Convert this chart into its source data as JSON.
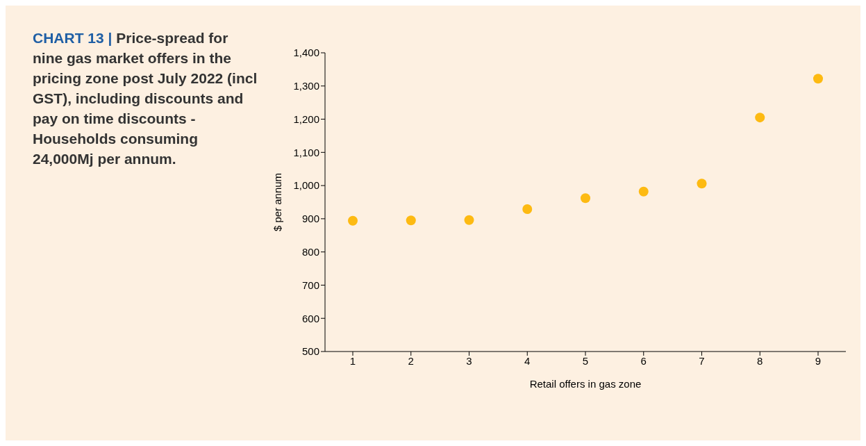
{
  "chart_data": {
    "type": "scatter",
    "title": "CHART 13 | Price-spread for nine gas market offers in the pricing zone post July 2022 (incl GST), including discounts and pay on time discounts - Households consuming 24,000Mj per annum.",
    "xlabel": "Retail offers in gas zone",
    "ylabel": "$ per annum",
    "categories": [
      "1",
      "2",
      "3",
      "4",
      "5",
      "6",
      "7",
      "8",
      "9"
    ],
    "series": [
      {
        "color": "#fdba12",
        "values": [
          894,
          895,
          896,
          929,
          962,
          982,
          1006,
          1205,
          1322
        ]
      }
    ],
    "ylim": [
      500,
      1400
    ],
    "yticks": [
      {
        "value": 500,
        "label": "500"
      },
      {
        "value": 600,
        "label": "600"
      },
      {
        "value": 700,
        "label": "700"
      },
      {
        "value": 800,
        "label": "800"
      },
      {
        "value": 900,
        "label": "900"
      },
      {
        "value": 1000,
        "label": "1,000"
      },
      {
        "value": 1100,
        "label": "1,100"
      },
      {
        "value": 1200,
        "label": "1,200"
      },
      {
        "value": 1300,
        "label": "1,300"
      },
      {
        "value": 1400,
        "label": "1,400"
      }
    ],
    "grid": false,
    "legend": false,
    "marker": "circle"
  }
}
